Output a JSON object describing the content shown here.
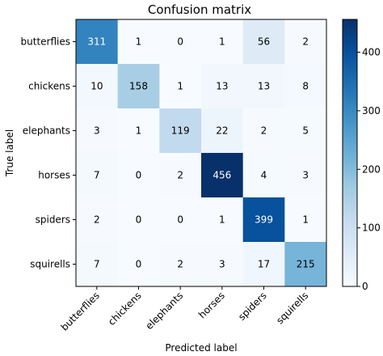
{
  "chart_data": {
    "type": "heatmap",
    "title": "Confusion matrix",
    "xlabel": "Predicted label",
    "ylabel": "True label",
    "x_categories": [
      "butterflies",
      "chickens",
      "elephants",
      "horses",
      "spiders",
      "squirells"
    ],
    "y_categories": [
      "butterflies",
      "chickens",
      "elephants",
      "horses",
      "spiders",
      "squirells"
    ],
    "values": [
      [
        311,
        1,
        0,
        1,
        56,
        2
      ],
      [
        10,
        158,
        1,
        13,
        13,
        8
      ],
      [
        3,
        1,
        119,
        22,
        2,
        5
      ],
      [
        7,
        0,
        2,
        456,
        4,
        3
      ],
      [
        2,
        0,
        0,
        1,
        399,
        1
      ],
      [
        7,
        0,
        2,
        3,
        17,
        215
      ]
    ],
    "colormap": "Blues",
    "colorbar": {
      "range": [
        0,
        456
      ],
      "ticks": [
        0,
        100,
        200,
        300,
        400
      ],
      "tick_labels": [
        "0",
        "100",
        "200",
        "300",
        "400"
      ]
    }
  }
}
